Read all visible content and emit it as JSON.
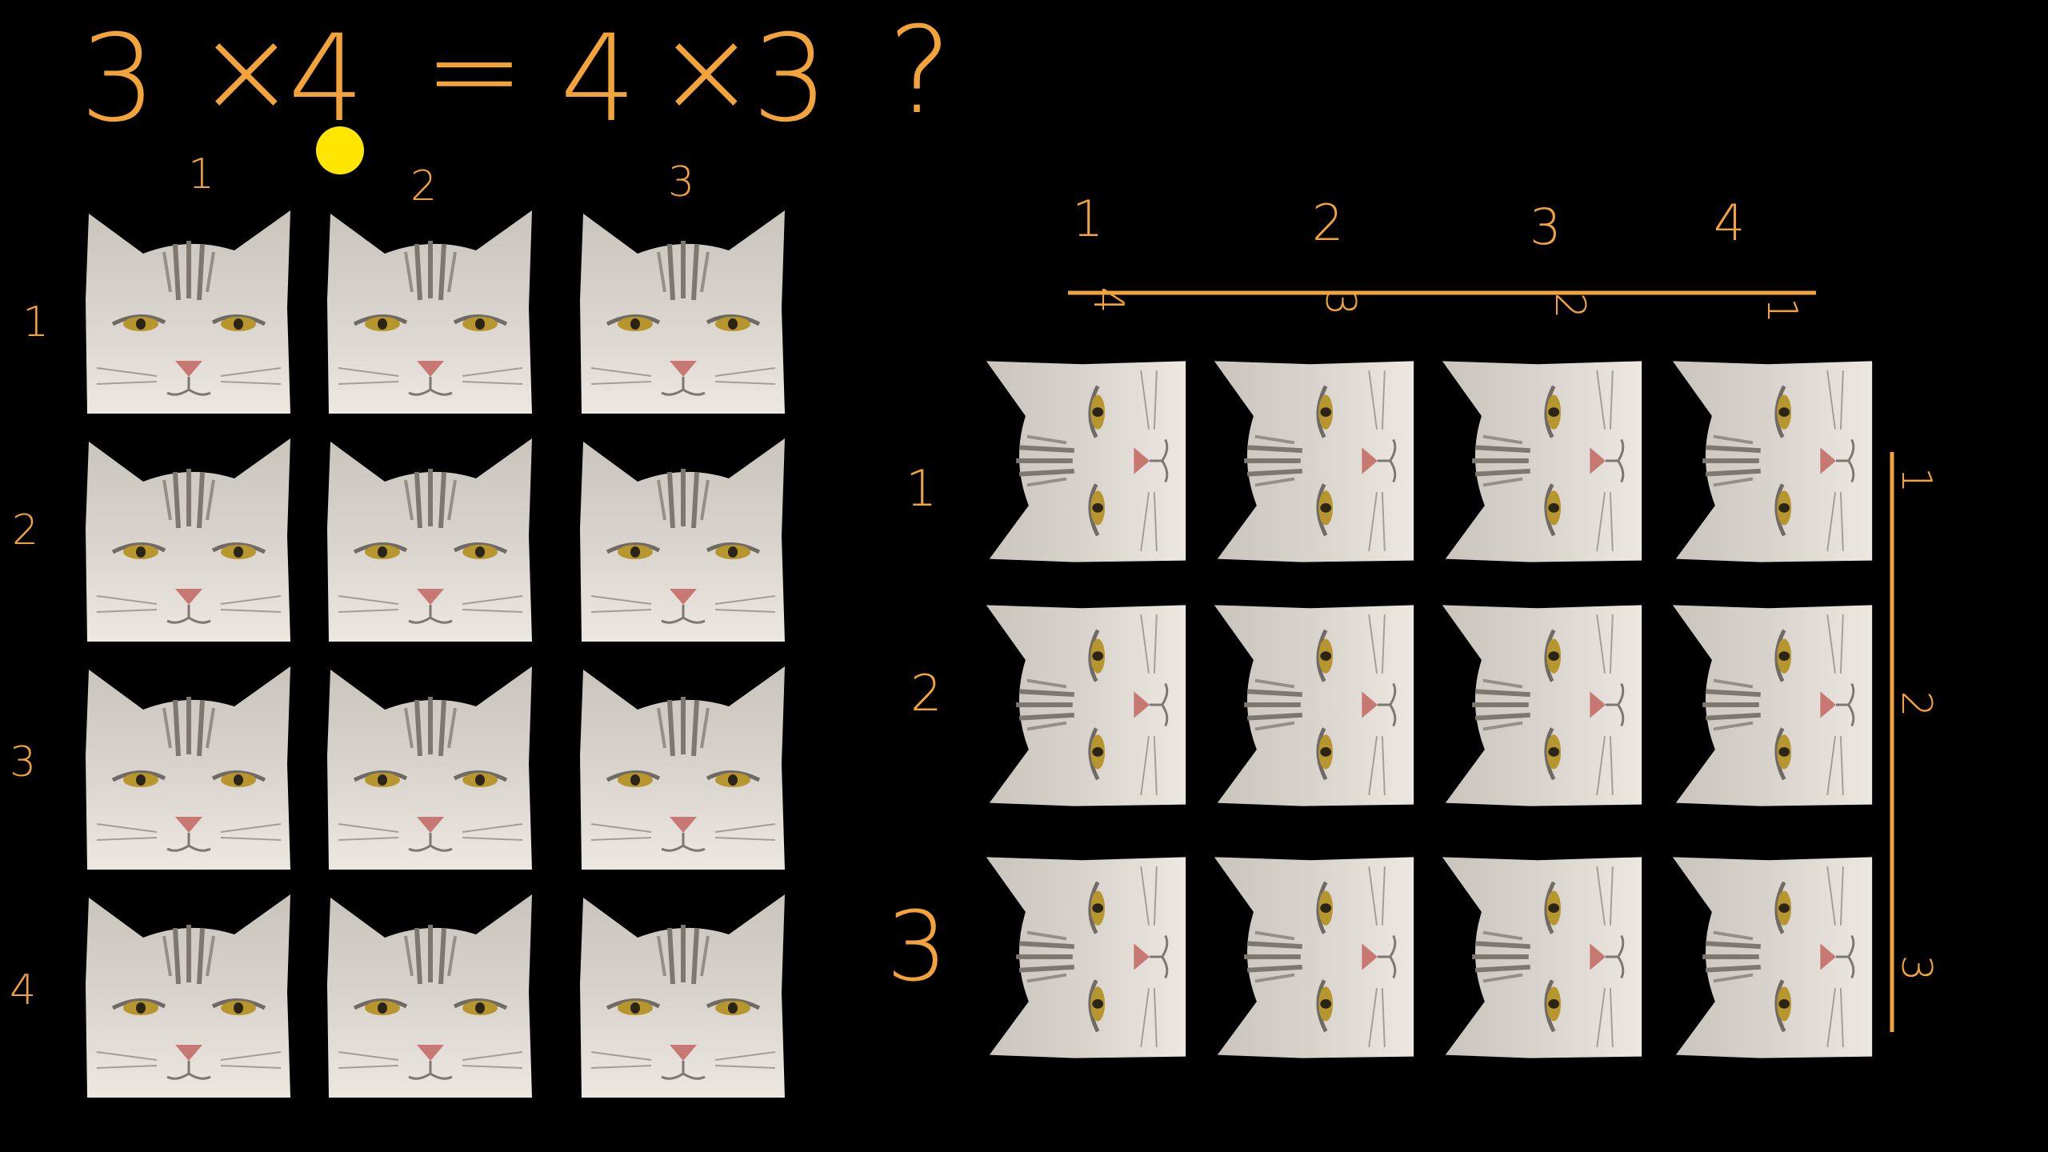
{
  "equation": {
    "left_a": "3",
    "op1": "×",
    "left_b": "4",
    "equals": "=",
    "right_a": "4",
    "op2": "×",
    "right_b": "3",
    "question": "?"
  },
  "left_grid": {
    "column_labels": [
      "1",
      "2",
      "3"
    ],
    "row_labels": [
      "1",
      "2",
      "3",
      "4"
    ],
    "rows": 4,
    "columns": 3,
    "tile": "cat-face-icon"
  },
  "right_grid": {
    "column_labels": [
      "1",
      "2",
      "3",
      "4"
    ],
    "row_labels": [
      "1",
      "2",
      "3"
    ],
    "ruler_top_labels": [
      "4",
      "3",
      "2",
      "1"
    ],
    "ruler_side_labels": [
      "1",
      "2",
      "3"
    ],
    "rows": 3,
    "columns": 4,
    "tile": "cat-face-rotated-icon"
  },
  "cursor": {
    "color": "#ffe600"
  },
  "colors": {
    "background": "#000000",
    "ink": "#f2a33a"
  }
}
